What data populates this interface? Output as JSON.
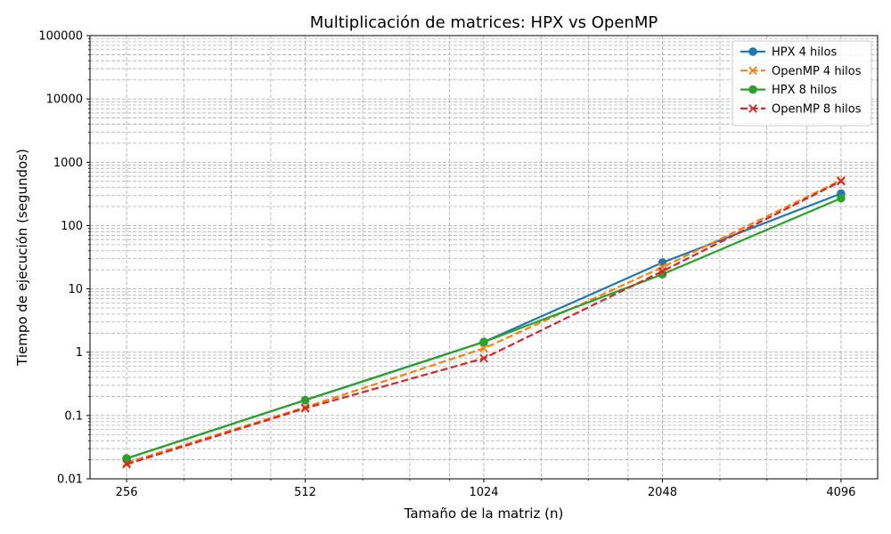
{
  "chart_data": {
    "type": "line",
    "title": "Multiplicación de matrices: HPX vs OpenMP",
    "xlabel": "Tamaño de la matriz (n)",
    "ylabel": "Tiempo de ejecución (segundos)",
    "x_scale": "log2",
    "y_scale": "log10",
    "x": [
      256,
      512,
      1024,
      2048,
      4096
    ],
    "x_tick_labels": [
      "256",
      "512",
      "1024",
      "2048",
      "4096"
    ],
    "y_ticks": [
      0.01,
      0.1,
      1,
      10,
      100,
      1000,
      10000,
      100000
    ],
    "y_tick_labels": [
      "0.01",
      "0.1",
      "1",
      "10",
      "100",
      "1000",
      "10000",
      "100000"
    ],
    "ylim": [
      0.01,
      100000
    ],
    "grid": true,
    "legend_position": "top-right",
    "series": [
      {
        "name": "HPX 4 hilos",
        "color": "#1f77b4",
        "marker": "circle",
        "linestyle": "solid",
        "values": [
          0.021,
          0.175,
          1.45,
          26,
          320
        ]
      },
      {
        "name": "OpenMP 4 hilos",
        "color": "#ff7f0e",
        "marker": "x",
        "linestyle": "dashed",
        "values": [
          0.018,
          0.135,
          1.15,
          22,
          520
        ]
      },
      {
        "name": "HPX 8 hilos",
        "color": "#2ca02c",
        "marker": "circle",
        "linestyle": "solid",
        "values": [
          0.021,
          0.175,
          1.45,
          17,
          270
        ]
      },
      {
        "name": "OpenMP 8 hilos",
        "color": "#d62728",
        "marker": "x",
        "linestyle": "dashed",
        "values": [
          0.017,
          0.13,
          0.8,
          19,
          500
        ]
      }
    ]
  }
}
